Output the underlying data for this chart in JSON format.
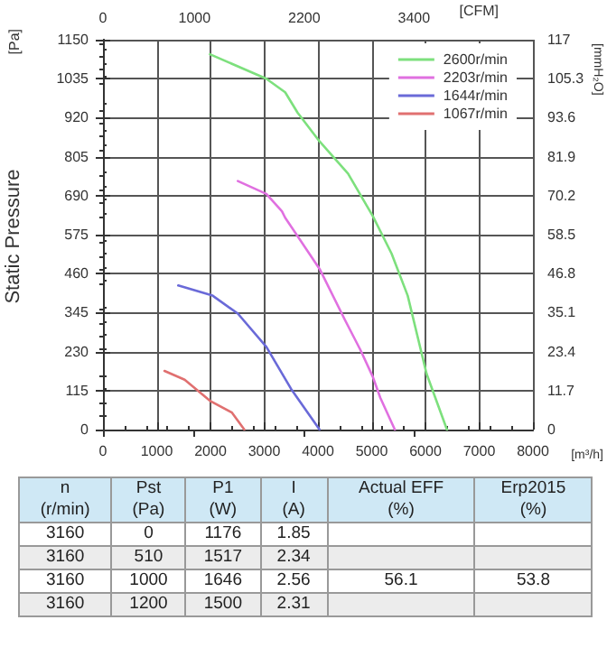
{
  "chart_data": [
    {
      "type": "line",
      "xlabel": "[m³/h]",
      "x2label": "[CFM]",
      "ylabel": "[Pa]",
      "y2label": "[mmH₂O]",
      "annotations": [
        "Static Pressure"
      ],
      "xlim": [
        0,
        8000
      ],
      "xticks": [
        0,
        1000,
        2000,
        3000,
        4000,
        5000,
        6000,
        7000,
        8000
      ],
      "x2lim": [
        0,
        4700
      ],
      "x2ticks": [
        0,
        1000,
        2200,
        3400
      ],
      "ylim": [
        0,
        1150
      ],
      "yticks": [
        0,
        115,
        230,
        345,
        460,
        575,
        690,
        805,
        920,
        1035,
        1150
      ],
      "y2lim": [
        0,
        117
      ],
      "y2ticks": [
        0,
        11.7,
        23.4,
        35.1,
        46.8,
        58.5,
        70.2,
        81.9,
        93.6,
        105.3,
        117
      ],
      "grid": true,
      "legend": "top right",
      "marker": "none",
      "line_style": "solid",
      "series": [
        {
          "name": "2600r/min",
          "color": "#7de07d",
          "x": [
            1990,
            3040,
            3390,
            3620,
            4030,
            4560,
            5020,
            5370,
            5670,
            6020,
            6400
          ],
          "values": [
            1107,
            1035,
            995,
            935,
            850,
            755,
            630,
            519,
            395,
            165,
            0
          ]
        },
        {
          "name": "2203r/min",
          "color": "#e070e0",
          "x": [
            2510,
            3040,
            3330,
            3390,
            4030,
            4500,
            4790,
            5020,
            5160,
            5430
          ],
          "values": [
            733,
            695,
            644,
            625,
            474,
            324,
            235,
            156,
            94,
            0
          ]
        },
        {
          "name": "1644r/min",
          "color": "#6a6ad8",
          "x": [
            1400,
            2040,
            2510,
            3040,
            3500,
            4030
          ],
          "values": [
            425,
            395,
            342,
            244,
            120,
            0
          ]
        },
        {
          "name": "1067r/min",
          "color": "#e07070",
          "x": [
            1145,
            1520,
            1990,
            2400,
            2630
          ],
          "values": [
            173,
            147,
            85,
            50,
            0
          ]
        }
      ]
    },
    {
      "type": "other",
      "categories": [
        "n\n(r/min)",
        "Pst\n(Pa)",
        "P1\n(W)",
        "I\n(A)",
        "Actual EFF\n(%)",
        "Erp2015\n(%)"
      ],
      "cell_labels": [
        [
          "3160",
          "0",
          "1176",
          "1.85",
          null,
          null
        ],
        [
          "3160",
          "510",
          "1517",
          "2.34",
          null,
          null
        ],
        [
          "3160",
          "1000",
          "1646",
          "2.56",
          "56.1",
          "53.8"
        ],
        [
          "3160",
          "1200",
          "1500",
          "2.31",
          null,
          null
        ]
      ]
    }
  ]
}
